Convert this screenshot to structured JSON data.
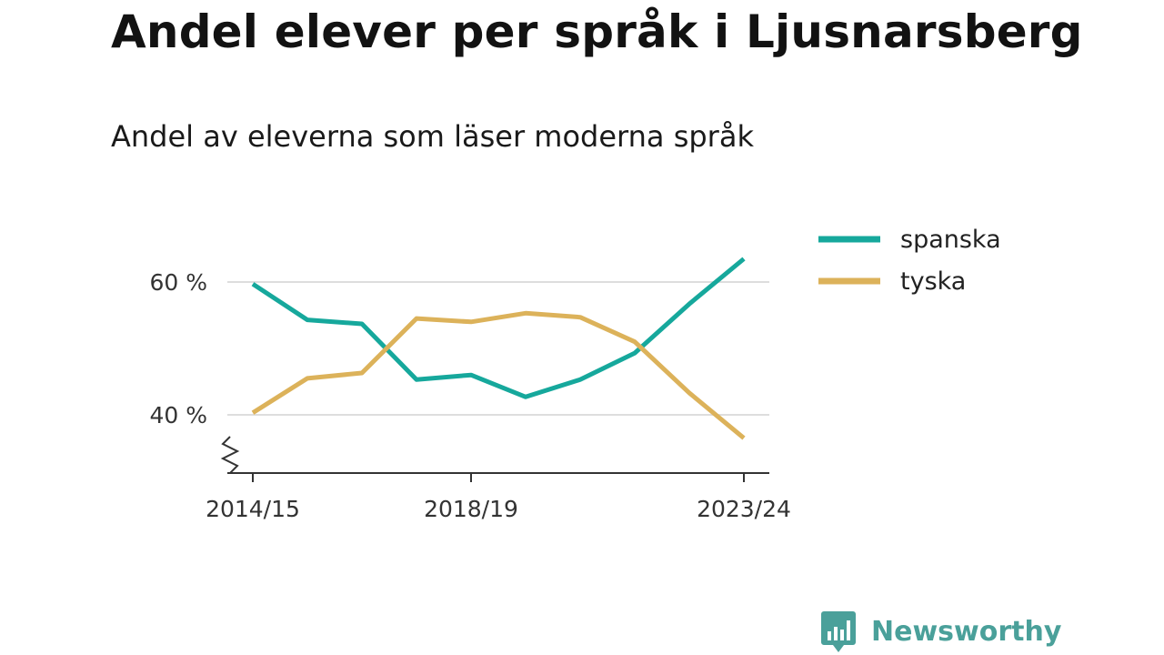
{
  "title": "Andel elever per språk i Ljusnarsberg",
  "subtitle": "Andel av eleverna som läser moderna språk",
  "brand": {
    "name": "Newsworthy",
    "color": "#4aa09a"
  },
  "chart_data": {
    "type": "line",
    "categories": [
      "2014/15",
      "2015/16",
      "2016/17",
      "2017/18",
      "2018/19",
      "2019/20",
      "2020/21",
      "2021/22",
      "2022/23",
      "2023/24"
    ],
    "x_tick_labels": [
      "2014/15",
      "2018/19",
      "2023/24"
    ],
    "y_ticks": [
      40,
      60
    ],
    "y_tick_labels": [
      "40 %",
      "60 %"
    ],
    "ylim": [
      31.5,
      67
    ],
    "axis_break": true,
    "grid": true,
    "legend_position": "top-right",
    "series": [
      {
        "name": "spanska",
        "color": "#16a89c",
        "values": [
          59.7,
          54.3,
          53.7,
          45.3,
          46.0,
          42.7,
          45.3,
          49.3,
          56.7,
          63.5
        ]
      },
      {
        "name": "tyska",
        "color": "#dcb25a",
        "values": [
          40.3,
          45.5,
          46.3,
          54.5,
          54.0,
          55.3,
          54.7,
          51.0,
          43.3,
          36.5
        ]
      }
    ]
  }
}
